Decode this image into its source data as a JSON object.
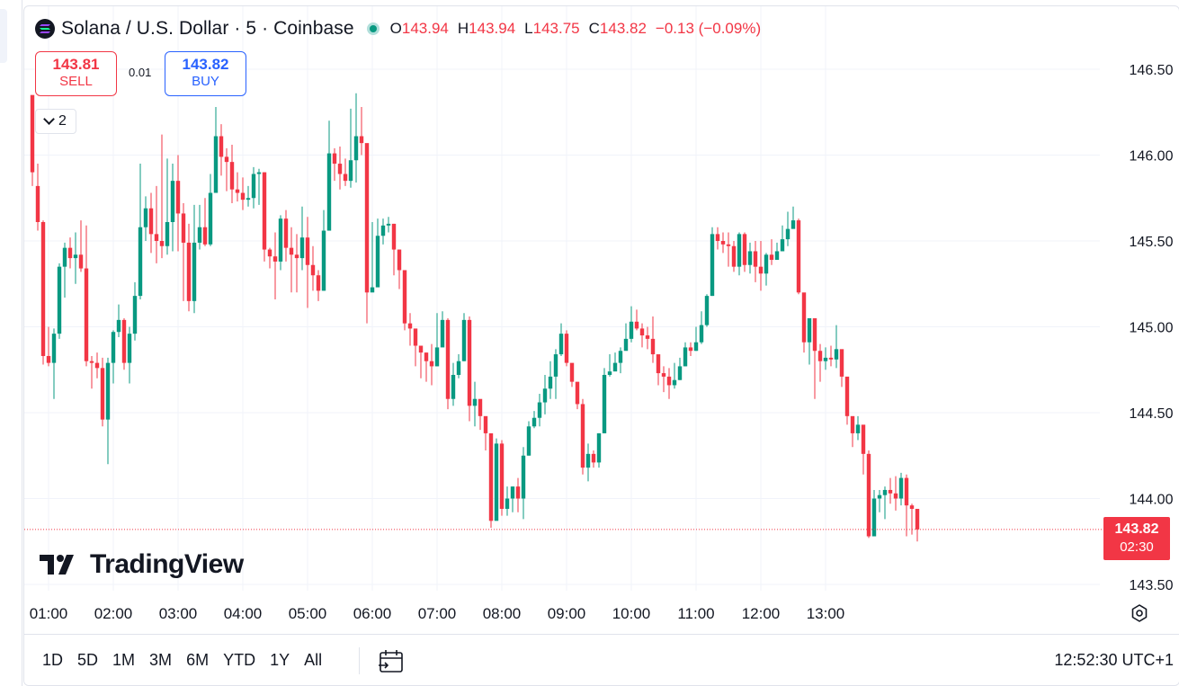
{
  "header": {
    "title": "Solana / U.S. Dollar · 5 · Coinbase",
    "ohlc": [
      {
        "key": "O",
        "value": "143.94"
      },
      {
        "key": "H",
        "value": "143.94"
      },
      {
        "key": "L",
        "value": "143.75"
      },
      {
        "key": "C",
        "value": "143.82"
      }
    ],
    "change": "−0.13 (−0.09%)"
  },
  "trade": {
    "sell_price": "143.81",
    "sell_label": "SELL",
    "buy_price": "143.82",
    "buy_label": "BUY",
    "spread": "0.01"
  },
  "indicators_badge": "2",
  "logo_text": "TradingView",
  "price_axis": {
    "ticks": [
      "146.50",
      "146.00",
      "145.50",
      "145.00",
      "144.50",
      "144.00",
      "143.50"
    ]
  },
  "time_axis": {
    "ticks": [
      "01:00",
      "02:00",
      "03:00",
      "04:00",
      "05:00",
      "06:00",
      "07:00",
      "08:00",
      "09:00",
      "10:00",
      "11:00",
      "12:00",
      "13:00"
    ]
  },
  "last_price": {
    "price": "143.82",
    "countdown": "02:30"
  },
  "bottom_bar": {
    "ranges": [
      "1D",
      "5D",
      "1M",
      "3M",
      "6M",
      "YTD",
      "1Y",
      "All"
    ],
    "clock": "12:52:30 UTC+1"
  },
  "colors": {
    "up": "#089981",
    "down": "#f23645",
    "buy": "#2962ff",
    "grid": "#f0f3fa"
  },
  "chart_data": {
    "type": "candlestick",
    "interval": "5",
    "ylim": [
      143.3,
      146.85
    ],
    "x_start": "00:42",
    "x_step_minutes": 5,
    "candles": [
      [
        146.35,
        145.9,
        146.15,
        145.82
      ],
      [
        145.82,
        145.61,
        145.95,
        145.56
      ],
      [
        145.61,
        144.83,
        145.62,
        144.78
      ],
      [
        144.83,
        144.79,
        145.0,
        144.77
      ],
      [
        144.79,
        144.96,
        144.99,
        144.58
      ],
      [
        144.96,
        145.35,
        145.37,
        144.93
      ],
      [
        145.35,
        145.46,
        145.49,
        145.17
      ],
      [
        145.46,
        145.4,
        145.52,
        145.34
      ],
      [
        145.4,
        145.42,
        145.55,
        145.25
      ],
      [
        145.42,
        145.34,
        145.62,
        145.32
      ],
      [
        145.34,
        144.8,
        145.59,
        144.77
      ],
      [
        144.8,
        144.79,
        144.83,
        144.64
      ],
      [
        144.79,
        144.76,
        144.85,
        144.7
      ],
      [
        144.76,
        144.46,
        144.82,
        144.42
      ],
      [
        144.46,
        144.79,
        144.82,
        144.2
      ],
      [
        144.79,
        144.97,
        144.98,
        144.67
      ],
      [
        144.97,
        145.04,
        145.13,
        144.94
      ],
      [
        145.04,
        144.79,
        145.05,
        144.75
      ],
      [
        144.79,
        144.96,
        145.0,
        144.67
      ],
      [
        144.96,
        145.18,
        145.26,
        144.92
      ],
      [
        145.18,
        145.58,
        145.95,
        145.16
      ],
      [
        145.58,
        145.69,
        145.76,
        145.5
      ],
      [
        145.69,
        145.54,
        145.78,
        145.43
      ],
      [
        145.54,
        145.5,
        145.82,
        145.37
      ],
      [
        145.5,
        145.47,
        146.12,
        145.4
      ],
      [
        145.47,
        145.61,
        145.98,
        145.42
      ],
      [
        145.61,
        145.85,
        145.95,
        145.44
      ],
      [
        145.85,
        145.66,
        146.0,
        145.44
      ],
      [
        145.66,
        145.49,
        145.72,
        145.15
      ],
      [
        145.49,
        145.15,
        145.6,
        145.09
      ],
      [
        145.15,
        145.49,
        145.71,
        145.08
      ],
      [
        145.49,
        145.58,
        145.71,
        145.45
      ],
      [
        145.58,
        145.48,
        145.75,
        145.47
      ],
      [
        145.48,
        145.78,
        145.89,
        145.47
      ],
      [
        145.78,
        146.11,
        146.28,
        145.78
      ],
      [
        146.11,
        145.99,
        146.18,
        145.88
      ],
      [
        145.99,
        145.96,
        146.04,
        145.79
      ],
      [
        145.96,
        145.8,
        146.06,
        145.72
      ],
      [
        145.8,
        145.78,
        145.9,
        145.73
      ],
      [
        145.78,
        145.74,
        145.87,
        145.68
      ],
      [
        145.74,
        145.75,
        145.82,
        145.7
      ],
      [
        145.75,
        145.89,
        145.93,
        145.69
      ],
      [
        145.89,
        145.9,
        145.92,
        145.71
      ],
      [
        145.9,
        145.45,
        145.9,
        145.38
      ],
      [
        145.45,
        145.41,
        145.46,
        145.34
      ],
      [
        145.41,
        145.38,
        145.55,
        145.16
      ],
      [
        145.38,
        145.63,
        145.65,
        145.33
      ],
      [
        145.63,
        145.46,
        145.68,
        145.38
      ],
      [
        145.46,
        145.42,
        145.58,
        145.2
      ],
      [
        145.42,
        145.4,
        145.54,
        145.2
      ],
      [
        145.4,
        145.52,
        145.7,
        145.33
      ],
      [
        145.52,
        145.36,
        145.64,
        145.11
      ],
      [
        145.36,
        145.3,
        145.47,
        145.21
      ],
      [
        145.3,
        145.21,
        145.33,
        145.15
      ],
      [
        145.21,
        145.56,
        145.68,
        145.21
      ],
      [
        145.56,
        146.01,
        146.2,
        145.86
      ],
      [
        146.01,
        145.95,
        146.04,
        145.85
      ],
      [
        145.95,
        145.89,
        146.05,
        145.8
      ],
      [
        145.89,
        145.85,
        145.98,
        145.82
      ],
      [
        145.85,
        145.97,
        146.27,
        145.81
      ],
      [
        145.97,
        146.11,
        146.36,
        145.84
      ],
      [
        146.11,
        146.07,
        146.28,
        146.0
      ],
      [
        146.07,
        145.2,
        146.06,
        145.02
      ],
      [
        145.2,
        145.23,
        145.61,
        145.21
      ],
      [
        145.23,
        145.53,
        145.63,
        145.37
      ],
      [
        145.53,
        145.59,
        145.63,
        145.48
      ],
      [
        145.59,
        145.6,
        145.64,
        145.55
      ],
      [
        145.6,
        145.45,
        145.6,
        145.3
      ],
      [
        145.45,
        145.33,
        145.45,
        145.22
      ],
      [
        145.33,
        145.02,
        145.33,
        144.98
      ],
      [
        145.02,
        144.99,
        145.08,
        144.89
      ],
      [
        144.99,
        144.89,
        144.98,
        144.77
      ],
      [
        144.89,
        144.85,
        144.85,
        144.7
      ],
      [
        144.85,
        144.8,
        144.85,
        144.68
      ],
      [
        144.8,
        144.77,
        144.9,
        144.66
      ],
      [
        144.77,
        144.88,
        145.08,
        144.77
      ],
      [
        144.88,
        145.04,
        145.09,
        144.98
      ],
      [
        145.04,
        144.58,
        145.05,
        144.52
      ],
      [
        144.58,
        144.72,
        144.79,
        144.54
      ],
      [
        144.72,
        144.8,
        144.84,
        144.7
      ],
      [
        144.8,
        145.04,
        145.08,
        144.8
      ],
      [
        145.04,
        144.54,
        145.06,
        144.45
      ],
      [
        144.54,
        144.58,
        144.68,
        144.42
      ],
      [
        144.58,
        144.48,
        144.53,
        144.4
      ],
      [
        144.48,
        144.38,
        144.41,
        144.28
      ],
      [
        144.38,
        143.87,
        144.36,
        143.83
      ],
      [
        143.87,
        144.32,
        144.35,
        143.95
      ],
      [
        144.32,
        143.94,
        144.34,
        143.9
      ],
      [
        143.94,
        144.0,
        144.07,
        143.9
      ],
      [
        144.0,
        144.07,
        144.07,
        143.92
      ],
      [
        144.07,
        144.0,
        144.12,
        143.92
      ],
      [
        144.0,
        144.25,
        144.3,
        143.88
      ],
      [
        144.25,
        144.42,
        144.45,
        144.25
      ],
      [
        144.42,
        144.47,
        144.51,
        144.41
      ],
      [
        144.47,
        144.56,
        144.61,
        144.42
      ],
      [
        144.56,
        144.64,
        144.72,
        144.49
      ],
      [
        144.64,
        144.71,
        144.8,
        144.58
      ],
      [
        144.71,
        144.84,
        144.87,
        144.58
      ],
      [
        144.84,
        144.96,
        145.02,
        144.83
      ],
      [
        144.96,
        144.79,
        144.98,
        144.77
      ],
      [
        144.79,
        144.68,
        144.73,
        144.65
      ],
      [
        144.68,
        144.55,
        144.56,
        144.52
      ],
      [
        144.55,
        144.18,
        144.58,
        144.14
      ],
      [
        144.18,
        144.26,
        144.32,
        144.1
      ],
      [
        144.26,
        144.21,
        144.28,
        144.18
      ],
      [
        144.21,
        144.38,
        144.38,
        144.18
      ],
      [
        144.38,
        144.72,
        144.76,
        144.38
      ],
      [
        144.72,
        144.74,
        144.84,
        144.71
      ],
      [
        144.74,
        144.79,
        144.85,
        144.76
      ],
      [
        144.79,
        144.86,
        144.88,
        144.73
      ],
      [
        144.86,
        144.93,
        145.02,
        144.92
      ],
      [
        144.93,
        145.03,
        145.12,
        144.91
      ],
      [
        145.03,
        144.99,
        145.1,
        144.98
      ],
      [
        144.99,
        144.95,
        145.02,
        144.88
      ],
      [
        144.95,
        144.93,
        145.0,
        144.87
      ],
      [
        144.93,
        144.84,
        145.06,
        144.79
      ],
      [
        144.84,
        144.73,
        144.8,
        144.66
      ],
      [
        144.73,
        144.71,
        144.77,
        144.62
      ],
      [
        144.71,
        144.66,
        144.76,
        144.58
      ],
      [
        144.66,
        144.69,
        144.79,
        144.64
      ],
      [
        144.69,
        144.77,
        144.82,
        144.69
      ],
      [
        144.77,
        144.88,
        144.91,
        144.77
      ],
      [
        144.88,
        144.86,
        144.91,
        144.83
      ],
      [
        144.86,
        144.91,
        145.0,
        144.86
      ],
      [
        144.91,
        145.01,
        145.09,
        144.9
      ],
      [
        145.01,
        145.18,
        145.19,
        145.0
      ],
      [
        145.18,
        145.54,
        145.58,
        145.18
      ],
      [
        145.54,
        145.5,
        145.58,
        145.45
      ],
      [
        145.5,
        145.48,
        145.55,
        145.43
      ],
      [
        145.48,
        145.47,
        145.55,
        145.35
      ],
      [
        145.47,
        145.35,
        145.5,
        145.32
      ],
      [
        145.35,
        145.54,
        145.55,
        145.3
      ],
      [
        145.54,
        145.36,
        145.55,
        145.32
      ],
      [
        145.36,
        145.44,
        145.49,
        145.31
      ],
      [
        145.44,
        145.35,
        145.5,
        145.26
      ],
      [
        145.35,
        145.31,
        145.5,
        145.21
      ],
      [
        145.31,
        145.42,
        145.43,
        145.24
      ],
      [
        145.42,
        145.39,
        145.51,
        145.36
      ],
      [
        145.39,
        145.44,
        145.49,
        145.4
      ],
      [
        145.44,
        145.51,
        145.59,
        145.44
      ],
      [
        145.51,
        145.57,
        145.67,
        145.47
      ],
      [
        145.57,
        145.62,
        145.7,
        145.59
      ],
      [
        145.62,
        145.2,
        145.63,
        145.19
      ],
      [
        145.2,
        144.91,
        145.17,
        144.85
      ],
      [
        144.91,
        145.05,
        145.02,
        144.78
      ],
      [
        145.05,
        144.86,
        144.95,
        144.58
      ],
      [
        144.86,
        144.8,
        144.9,
        144.68
      ],
      [
        144.8,
        144.82,
        144.88,
        144.75
      ],
      [
        144.82,
        144.81,
        144.89,
        144.77
      ],
      [
        144.81,
        144.87,
        145.01,
        144.76
      ],
      [
        144.87,
        144.71,
        144.86,
        144.65
      ],
      [
        144.71,
        144.48,
        144.7,
        144.43
      ],
      [
        144.48,
        144.38,
        144.43,
        144.3
      ],
      [
        144.38,
        144.43,
        144.48,
        144.34
      ],
      [
        144.43,
        144.26,
        144.33,
        144.14
      ],
      [
        144.26,
        143.78,
        144.28,
        143.77
      ],
      [
        143.78,
        144.0,
        144.05,
        143.79
      ],
      [
        144.0,
        144.02,
        144.05,
        143.92
      ],
      [
        144.02,
        144.05,
        144.07,
        143.88
      ],
      [
        144.05,
        144.03,
        144.12,
        143.97
      ],
      [
        144.03,
        144.0,
        144.13,
        143.93
      ],
      [
        144.0,
        144.12,
        144.15,
        143.96
      ],
      [
        144.12,
        143.96,
        144.14,
        143.78
      ],
      [
        143.96,
        143.94,
        143.97,
        143.79
      ],
      [
        143.94,
        143.82,
        143.94,
        143.75
      ]
    ]
  }
}
